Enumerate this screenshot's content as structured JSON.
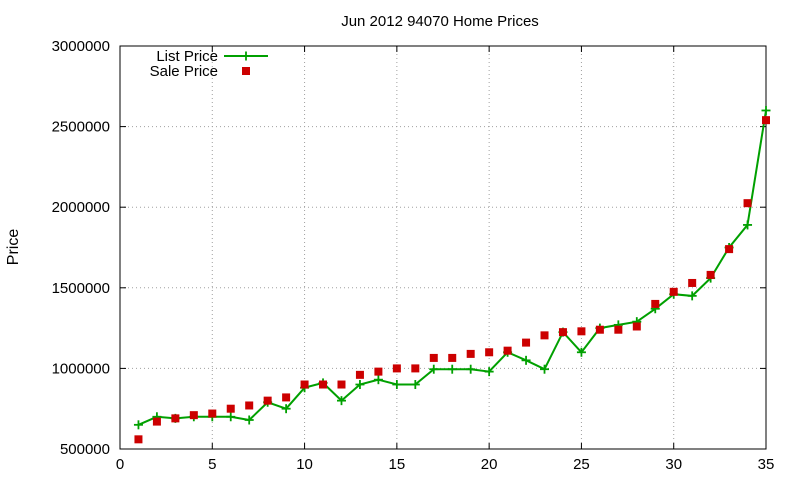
{
  "chart_data": {
    "type": "line",
    "title": "Jun 2012 94070 Home Prices",
    "xlabel": "",
    "ylabel": "Price",
    "xlim": [
      0,
      35
    ],
    "ylim": [
      500000,
      3000000
    ],
    "x_ticks": [
      0,
      5,
      10,
      15,
      20,
      25,
      30,
      35
    ],
    "y_ticks": [
      500000,
      1000000,
      1500000,
      2000000,
      2500000,
      3000000
    ],
    "x_tick_labels": [
      "0",
      "5",
      "10",
      "15",
      "20",
      "25",
      "30",
      "35"
    ],
    "y_tick_labels": [
      "500000",
      "1000000",
      "1500000",
      "2000000",
      "2500000",
      "3000000"
    ],
    "grid": true,
    "legend_position": "top-left",
    "x": [
      1,
      2,
      3,
      4,
      5,
      6,
      7,
      8,
      9,
      10,
      11,
      12,
      13,
      14,
      15,
      16,
      17,
      18,
      19,
      20,
      21,
      22,
      23,
      24,
      25,
      26,
      27,
      28,
      29,
      30,
      31,
      32,
      33,
      34,
      35
    ],
    "series": [
      {
        "name": "List Price",
        "style": "line-points",
        "color": "#00a000",
        "marker": "plus",
        "values": [
          650000,
          700000,
          690000,
          700000,
          700000,
          700000,
          680000,
          790000,
          750000,
          880000,
          910000,
          800000,
          900000,
          930000,
          900000,
          900000,
          995000,
          995000,
          995000,
          980000,
          1100000,
          1050000,
          995000,
          1225000,
          1100000,
          1250000,
          1270000,
          1290000,
          1370000,
          1460000,
          1450000,
          1560000,
          1750000,
          1890000,
          2600000
        ]
      },
      {
        "name": "Sale Price",
        "style": "points",
        "color": "#cc0000",
        "marker": "square",
        "values": [
          560000,
          670000,
          690000,
          710000,
          720000,
          750000,
          770000,
          800000,
          820000,
          900000,
          900000,
          900000,
          960000,
          980000,
          1000000,
          1000000,
          1065000,
          1065000,
          1090000,
          1100000,
          1110000,
          1160000,
          1205000,
          1225000,
          1230000,
          1240000,
          1240000,
          1260000,
          1400000,
          1475000,
          1530000,
          1580000,
          1740000,
          2025000,
          2540000
        ]
      }
    ]
  }
}
